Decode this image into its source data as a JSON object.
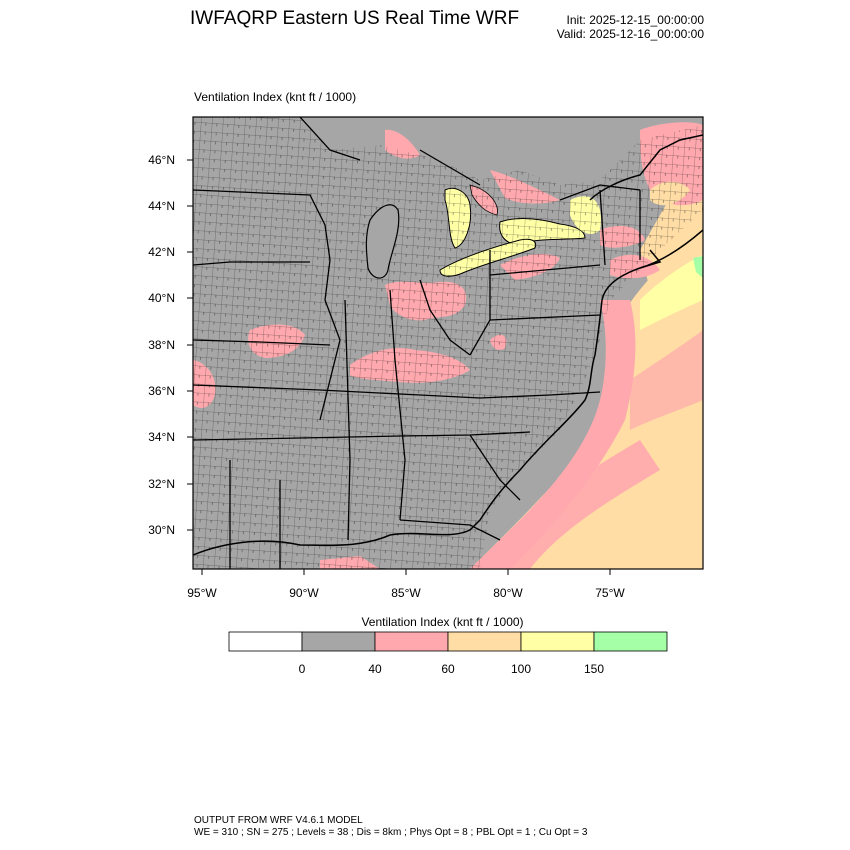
{
  "header": {
    "title": "IWFAQRP Eastern US Real Time WRF",
    "init": "Init: 2025-12-15_00:00:00",
    "valid": "Valid: 2025-12-16_00:00:00"
  },
  "map": {
    "field_label": "Ventilation Index   (knt ft / 1000)",
    "lat_labels": [
      "46°N",
      "44°N",
      "42°N",
      "40°N",
      "38°N",
      "36°N",
      "34°N",
      "32°N",
      "30°N"
    ],
    "lon_labels": [
      "95°W",
      "90°W",
      "85°W",
      "80°W",
      "75°W"
    ]
  },
  "colorbar": {
    "title": "Ventilation Index  (knt ft / 1000)",
    "thresholds": [
      "0",
      "40",
      "60",
      "100",
      "150"
    ],
    "colors": {
      "below_0": "#ffffff",
      "0_40": "#a6a6a6",
      "40_60": "#ffa9ae",
      "60_100": "#ffdda5",
      "100_150": "#ffffa6",
      "150_plus": "#a5ffa6"
    }
  },
  "footer": {
    "line1": "OUTPUT FROM WRF V4.6.1 MODEL",
    "line2": "WE = 310 ; SN = 275 ; Levels = 38 ; Dis = 8km ; Phys Opt = 8 ; PBL Opt = 1 ; Cu Opt = 3"
  }
}
